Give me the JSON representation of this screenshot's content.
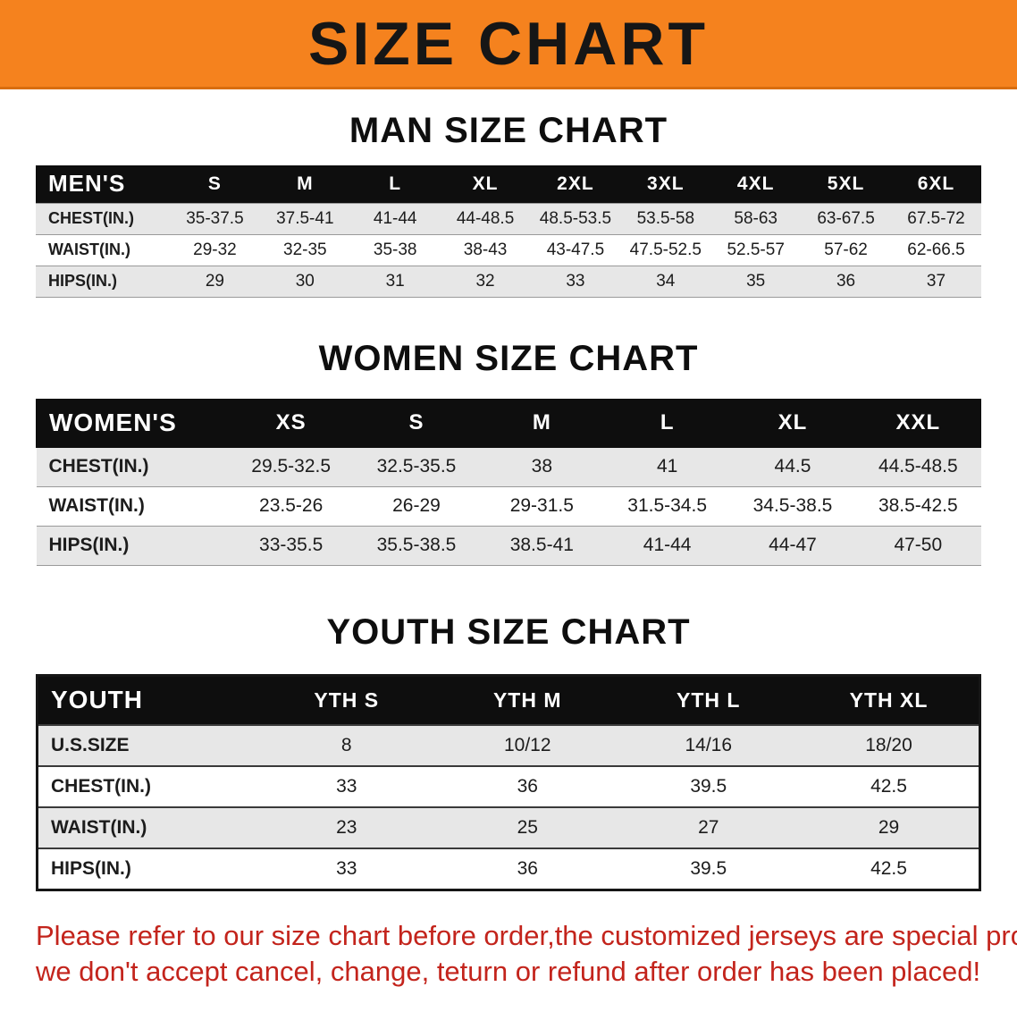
{
  "banner": {
    "title": "SIZE CHART",
    "bg_color": "#f5821e",
    "text_color": "#161616"
  },
  "sections": {
    "men": {
      "title": "MAN SIZE CHART",
      "header": [
        "MEN'S",
        "S",
        "M",
        "L",
        "XL",
        "2XL",
        "3XL",
        "4XL",
        "5XL",
        "6XL"
      ],
      "rows": [
        {
          "label": "CHEST(IN.)",
          "values": [
            "35-37.5",
            "37.5-41",
            "41-44",
            "44-48.5",
            "48.5-53.5",
            "53.5-58",
            "58-63",
            "63-67.5",
            "67.5-72"
          ]
        },
        {
          "label": "WAIST(IN.)",
          "values": [
            "29-32",
            "32-35",
            "35-38",
            "38-43",
            "43-47.5",
            "47.5-52.5",
            "52.5-57",
            "57-62",
            "62-66.5"
          ]
        },
        {
          "label": "HIPS(IN.)",
          "values": [
            "29",
            "30",
            "31",
            "32",
            "33",
            "34",
            "35",
            "36",
            "37"
          ]
        }
      ]
    },
    "women": {
      "title": "WOMEN SIZE CHART",
      "header": [
        "WOMEN'S",
        "XS",
        "S",
        "M",
        "L",
        "XL",
        "XXL"
      ],
      "rows": [
        {
          "label": "CHEST(IN.)",
          "values": [
            "29.5-32.5",
            "32.5-35.5",
            "38",
            "41",
            "44.5",
            "44.5-48.5"
          ]
        },
        {
          "label": "WAIST(IN.)",
          "values": [
            "23.5-26",
            "26-29",
            "29-31.5",
            "31.5-34.5",
            "34.5-38.5",
            "38.5-42.5"
          ]
        },
        {
          "label": "HIPS(IN.)",
          "values": [
            "33-35.5",
            "35.5-38.5",
            "38.5-41",
            "41-44",
            "44-47",
            "47-50"
          ]
        }
      ]
    },
    "youth": {
      "title": "YOUTH SIZE CHART",
      "header": [
        "YOUTH",
        "YTH S",
        "YTH M",
        "YTH L",
        "YTH XL"
      ],
      "rows": [
        {
          "label": "U.S.SIZE",
          "values": [
            "8",
            "10/12",
            "14/16",
            "18/20"
          ]
        },
        {
          "label": "CHEST(IN.)",
          "values": [
            "33",
            "36",
            "39.5",
            "42.5"
          ]
        },
        {
          "label": "WAIST(IN.)",
          "values": [
            "23",
            "25",
            "27",
            "29"
          ]
        },
        {
          "label": "HIPS(IN.)",
          "values": [
            "33",
            "36",
            "39.5",
            "42.5"
          ]
        }
      ]
    }
  },
  "disclaimer": {
    "line1": "Please refer to our size chart before order,the customized jerseys are special products,",
    "line2": "we don't accept cancel, change, teturn or refund after order has been placed!",
    "text_color": "#c3241c"
  }
}
